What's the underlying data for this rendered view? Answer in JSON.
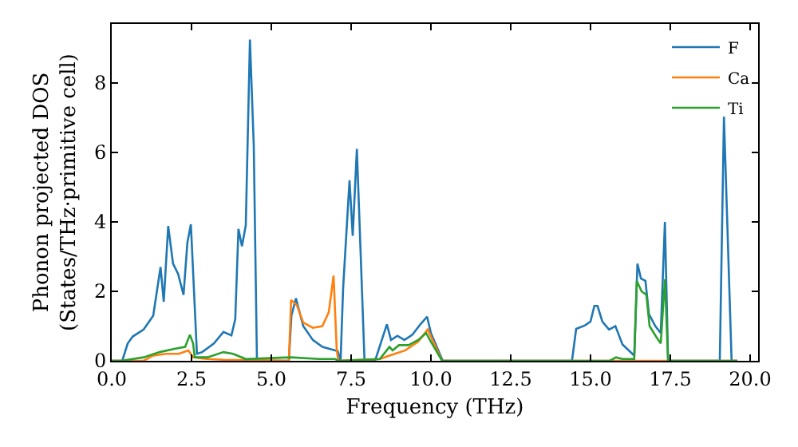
{
  "chart_data": {
    "type": "line",
    "xlabel": "Frequency (THz)",
    "ylabel": "Phonon projected DOS\n(States/THz·primitive cell)",
    "xlim": [
      0,
      20.25
    ],
    "ylim": [
      0,
      9.7
    ],
    "xticks": [
      {
        "value": 0,
        "label": "0.0"
      },
      {
        "value": 2.5,
        "label": "2.5"
      },
      {
        "value": 5,
        "label": "5.0"
      },
      {
        "value": 7.5,
        "label": "7.5"
      },
      {
        "value": 10,
        "label": "10.0"
      },
      {
        "value": 12.5,
        "label": "12.5"
      },
      {
        "value": 15,
        "label": "15.0"
      },
      {
        "value": 17.5,
        "label": "17.5"
      },
      {
        "value": 20,
        "label": "20.0"
      }
    ],
    "yticks": [
      0,
      2,
      4,
      6,
      8
    ],
    "grid": false,
    "legend": "top right",
    "marker": "none",
    "line_style": "solid",
    "series": [
      {
        "name": "F",
        "color": "#1f77b4",
        "x": [
          0,
          0.33,
          0.5,
          0.66,
          1.0,
          1.3,
          1.53,
          1.63,
          1.77,
          1.92,
          2.08,
          2.25,
          2.37,
          2.48,
          2.67,
          2.83,
          3.2,
          3.5,
          3.75,
          3.87,
          3.97,
          4.08,
          4.2,
          4.33,
          4.45,
          4.55,
          5.55,
          5.63,
          5.77,
          6.0,
          6.3,
          6.6,
          7.0,
          7.08,
          7.17,
          7.25,
          7.45,
          7.55,
          7.68,
          7.92,
          8.25,
          8.62,
          8.75,
          8.95,
          9.17,
          9.42,
          9.67,
          9.88,
          10.0,
          10.37,
          14.42,
          14.55,
          14.83,
          15.0,
          15.12,
          15.22,
          15.37,
          15.58,
          15.78,
          16.0,
          16.37,
          16.47,
          16.58,
          16.72,
          16.83,
          17.03,
          17.2,
          17.33,
          17.43,
          19.05,
          19.18,
          19.42,
          19.6
        ],
        "values": [
          0,
          0,
          0.5,
          0.7,
          0.9,
          1.3,
          2.7,
          1.7,
          3.88,
          2.8,
          2.5,
          1.9,
          3.4,
          3.93,
          0.2,
          0.25,
          0.5,
          0.83,
          0.73,
          1.2,
          3.8,
          3.3,
          3.9,
          9.25,
          6.2,
          0,
          0,
          1.3,
          1.8,
          1.0,
          0.6,
          0.4,
          0.3,
          0.28,
          0,
          2.1,
          5.2,
          3.6,
          6.1,
          0,
          0,
          1.05,
          0.6,
          0.72,
          0.6,
          0.75,
          1.05,
          1.27,
          0.8,
          0,
          0,
          0.92,
          1.02,
          1.13,
          1.58,
          1.58,
          1.13,
          0.9,
          1.0,
          0.47,
          0.15,
          2.8,
          2.37,
          2.3,
          1.35,
          1.0,
          0.8,
          4.0,
          0,
          0,
          7.03,
          0,
          0
        ]
      },
      {
        "name": "Ca",
        "color": "#ff7f0e",
        "x": [
          0,
          1.0,
          1.3,
          1.7,
          2.1,
          2.4,
          2.55,
          3.0,
          3.5,
          4.5,
          5.55,
          5.62,
          5.8,
          6.0,
          6.3,
          6.6,
          6.8,
          6.95,
          7.05,
          7.1,
          8.4,
          8.7,
          9.2,
          9.6,
          9.9,
          10.1,
          10.35,
          19.6
        ],
        "values": [
          0,
          0,
          0.15,
          0.2,
          0.2,
          0.3,
          0.1,
          0.05,
          0.03,
          0.02,
          0,
          1.75,
          1.6,
          1.1,
          0.95,
          1.0,
          1.4,
          2.45,
          0.3,
          0,
          0.05,
          0.15,
          0.3,
          0.55,
          0.9,
          0.5,
          0,
          0
        ]
      },
      {
        "name": "Ti",
        "color": "#2ca02c",
        "x": [
          0,
          0.3,
          1.0,
          1.5,
          2.0,
          2.3,
          2.45,
          2.55,
          2.6,
          3.0,
          3.5,
          3.8,
          4.2,
          5.6,
          6.5,
          7.0,
          7.1,
          8.4,
          8.7,
          8.8,
          9.0,
          9.3,
          9.6,
          9.85,
          10.0,
          10.35,
          15.6,
          15.8,
          16.0,
          16.37,
          16.45,
          16.6,
          16.75,
          16.85,
          17.05,
          17.2,
          17.33,
          17.43,
          19.6
        ],
        "values": [
          0,
          0,
          0.1,
          0.25,
          0.35,
          0.4,
          0.75,
          0.5,
          0.1,
          0.1,
          0.25,
          0.2,
          0.05,
          0.1,
          0.05,
          0.05,
          0,
          0.05,
          0.4,
          0.3,
          0.45,
          0.45,
          0.6,
          0.8,
          0.55,
          0,
          0,
          0.1,
          0.05,
          0.05,
          2.3,
          2.0,
          1.9,
          1.0,
          0.7,
          0.5,
          2.35,
          0,
          0
        ]
      }
    ]
  }
}
